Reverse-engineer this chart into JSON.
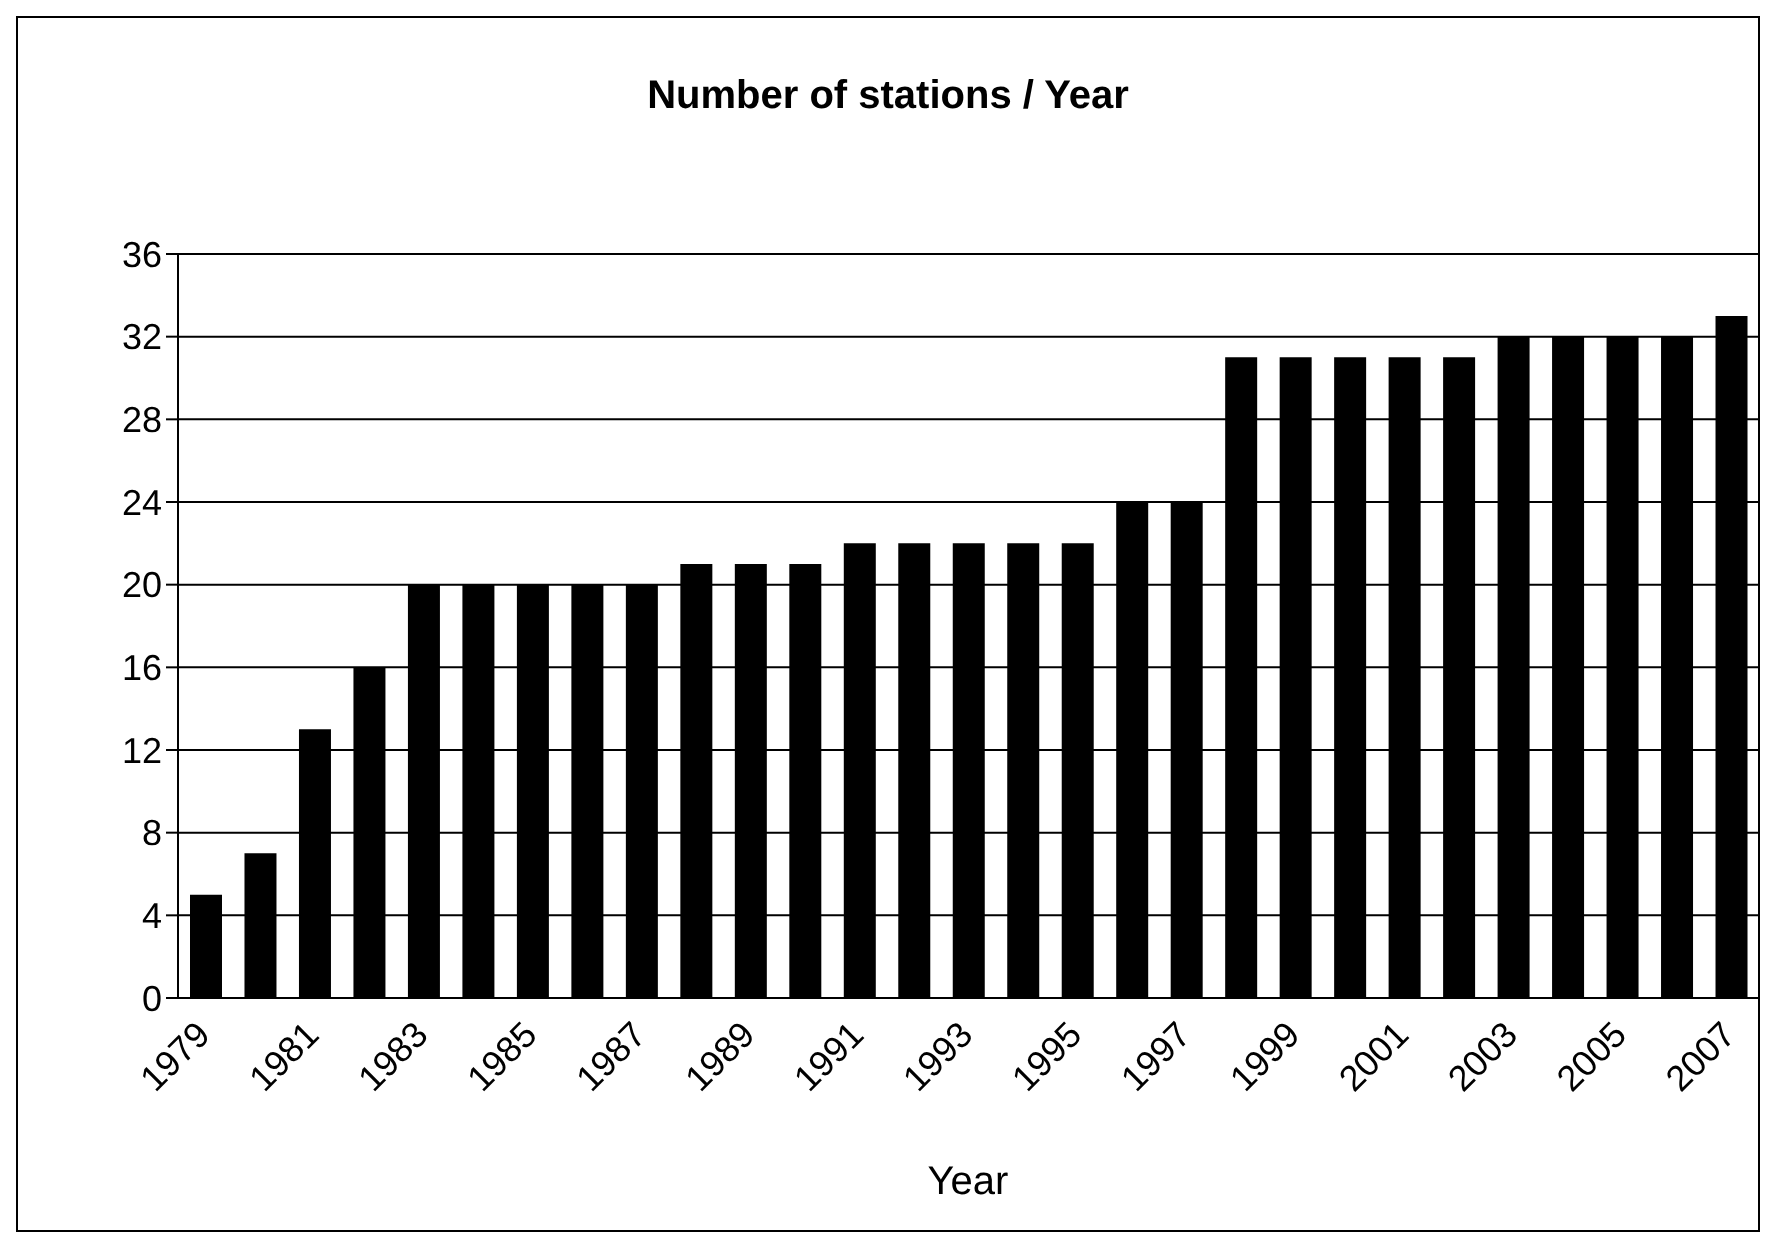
{
  "chart_data": {
    "type": "bar",
    "title": "Number of stations / Year",
    "xlabel": "Year",
    "categories": [
      "1979",
      null,
      "1981",
      null,
      "1983",
      null,
      "1985",
      null,
      "1987",
      null,
      "1989",
      null,
      "1991",
      null,
      "1993",
      null,
      "1995",
      null,
      "1997",
      null,
      "1999",
      null,
      "2001",
      null,
      "2003",
      null,
      "2005",
      null,
      "2007"
    ],
    "values": [
      5,
      7,
      13,
      16,
      20,
      20,
      20,
      20,
      20,
      21,
      21,
      21,
      22,
      22,
      22,
      22,
      22,
      24,
      24,
      31,
      31,
      31,
      31,
      31,
      32,
      32,
      32,
      32,
      33
    ],
    "color": "#000000",
    "ylim": [
      0,
      36
    ],
    "yticks": [
      0,
      4,
      8,
      12,
      16,
      20,
      24,
      28,
      32,
      36
    ],
    "grid": "y",
    "legend": false
  }
}
